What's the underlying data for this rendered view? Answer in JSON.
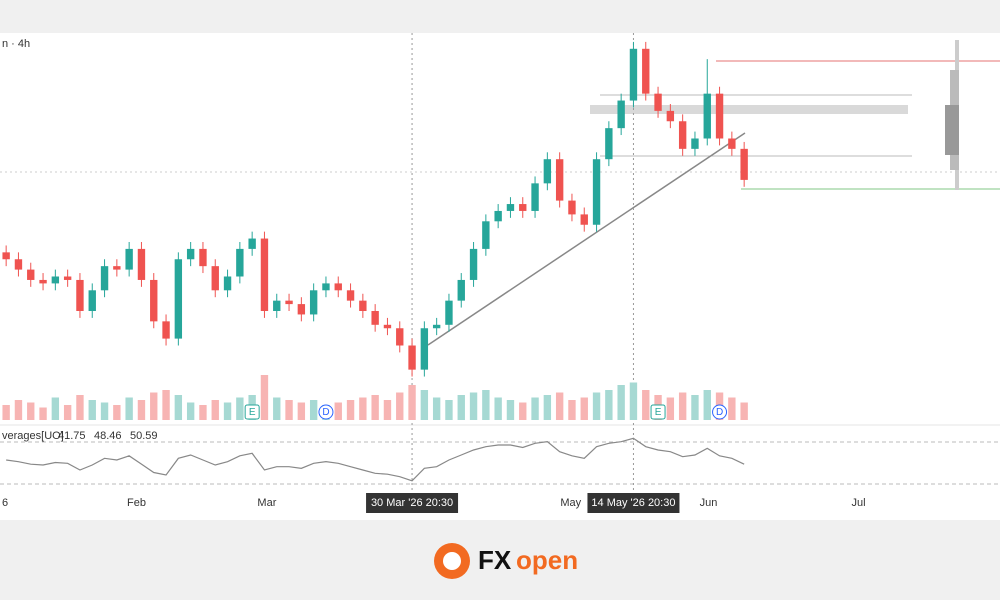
{
  "chart_data": {
    "type": "candlestick",
    "title": "n · 4h",
    "indicator_title": "verages[UO]",
    "indicator_values": [
      "41.75",
      "48.46",
      "50.59"
    ],
    "open": [
      37,
      35,
      32,
      29,
      28,
      30,
      29,
      20,
      26,
      33,
      32,
      38,
      29,
      17,
      12,
      35,
      38,
      33,
      26,
      30,
      38,
      41,
      20,
      23,
      22,
      19,
      26,
      28,
      26,
      23,
      20,
      16,
      15,
      10,
      3,
      15,
      16,
      23,
      29,
      38,
      46,
      49,
      51,
      49,
      57,
      64,
      52,
      48,
      45,
      64,
      73,
      81,
      96,
      83,
      78,
      75,
      67,
      70,
      83,
      70,
      67
    ],
    "high": [
      39,
      37,
      34,
      31,
      32,
      32,
      31,
      28,
      35,
      35,
      40,
      40,
      31,
      19,
      37,
      40,
      40,
      35,
      32,
      40,
      43,
      43,
      25,
      25,
      24,
      28,
      30,
      30,
      28,
      25,
      22,
      18,
      17,
      12,
      17,
      18,
      25,
      31,
      40,
      48,
      51,
      53,
      53,
      59,
      66,
      66,
      54,
      50,
      66,
      75,
      83,
      98,
      98,
      85,
      80,
      77,
      72,
      93,
      85,
      72,
      69
    ],
    "low": [
      33,
      30,
      27,
      26,
      26,
      27,
      18,
      18,
      24,
      30,
      30,
      27,
      15,
      10,
      10,
      33,
      31,
      24,
      24,
      28,
      36,
      18,
      18,
      20,
      17,
      17,
      24,
      24,
      21,
      18,
      14,
      13,
      8,
      1,
      1,
      13,
      14,
      21,
      27,
      36,
      44,
      47,
      47,
      47,
      55,
      50,
      46,
      43,
      43,
      62,
      71,
      79,
      81,
      76,
      73,
      65,
      65,
      68,
      68,
      65,
      56
    ],
    "close": [
      35,
      32,
      29,
      28,
      30,
      29,
      20,
      26,
      33,
      32,
      38,
      29,
      17,
      12,
      35,
      38,
      33,
      26,
      30,
      38,
      41,
      20,
      23,
      22,
      19,
      26,
      28,
      26,
      23,
      20,
      16,
      15,
      10,
      3,
      15,
      16,
      23,
      29,
      38,
      46,
      49,
      51,
      49,
      57,
      64,
      52,
      48,
      45,
      64,
      73,
      81,
      96,
      83,
      78,
      75,
      67,
      70,
      83,
      70,
      67,
      58
    ],
    "volume": [
      30,
      40,
      35,
      25,
      45,
      30,
      50,
      40,
      35,
      30,
      45,
      40,
      55,
      60,
      50,
      35,
      30,
      40,
      35,
      45,
      50,
      90,
      45,
      40,
      35,
      40,
      30,
      35,
      40,
      45,
      50,
      40,
      55,
      70,
      60,
      45,
      40,
      50,
      55,
      60,
      45,
      40,
      35,
      45,
      50,
      55,
      40,
      45,
      55,
      60,
      70,
      75,
      60,
      50,
      45,
      55,
      50,
      60,
      55,
      45,
      35
    ],
    "oscillator": [
      50,
      48,
      45,
      44,
      47,
      46,
      38,
      44,
      52,
      50,
      55,
      45,
      35,
      32,
      52,
      56,
      50,
      44,
      48,
      55,
      58,
      38,
      42,
      42,
      40,
      46,
      48,
      46,
      42,
      38,
      34,
      33,
      30,
      25,
      40,
      42,
      50,
      56,
      62,
      66,
      68,
      68,
      65,
      70,
      72,
      60,
      55,
      52,
      66,
      70,
      72,
      76,
      66,
      62,
      60,
      54,
      56,
      64,
      55,
      52,
      45
    ],
    "up_color": "#26a69a",
    "down_color": "#ef5350",
    "volume_up_color": "#a6d9d3",
    "volume_down_color": "#f7b4b3",
    "ylim": [
      0,
      100
    ],
    "volume_lim": [
      0,
      100
    ],
    "oscillator_lim": [
      20,
      80
    ],
    "xlim": [
      -0.5,
      80.8
    ],
    "xticks": [
      {
        "value": -0.5,
        "label": "6"
      },
      {
        "value": 10.6,
        "label": "Feb"
      },
      {
        "value": 21.2,
        "label": "Mar"
      },
      {
        "value": 45.9,
        "label": "May"
      },
      {
        "value": 57.1,
        "label": "Jun"
      },
      {
        "value": 69.3,
        "label": "Jul"
      }
    ],
    "crosshairs": [
      {
        "value": 33,
        "label": "30 Mar '26  20:30"
      },
      {
        "value": 51,
        "label": "14 May '26  20:30"
      }
    ],
    "events": [
      {
        "value": 20,
        "label": "E"
      },
      {
        "value": 26,
        "label": "D"
      },
      {
        "value": 53,
        "label": "E"
      },
      {
        "value": 58,
        "label": "D"
      }
    ]
  },
  "logo": {
    "brand_a": "FX",
    "brand_b": "open"
  }
}
